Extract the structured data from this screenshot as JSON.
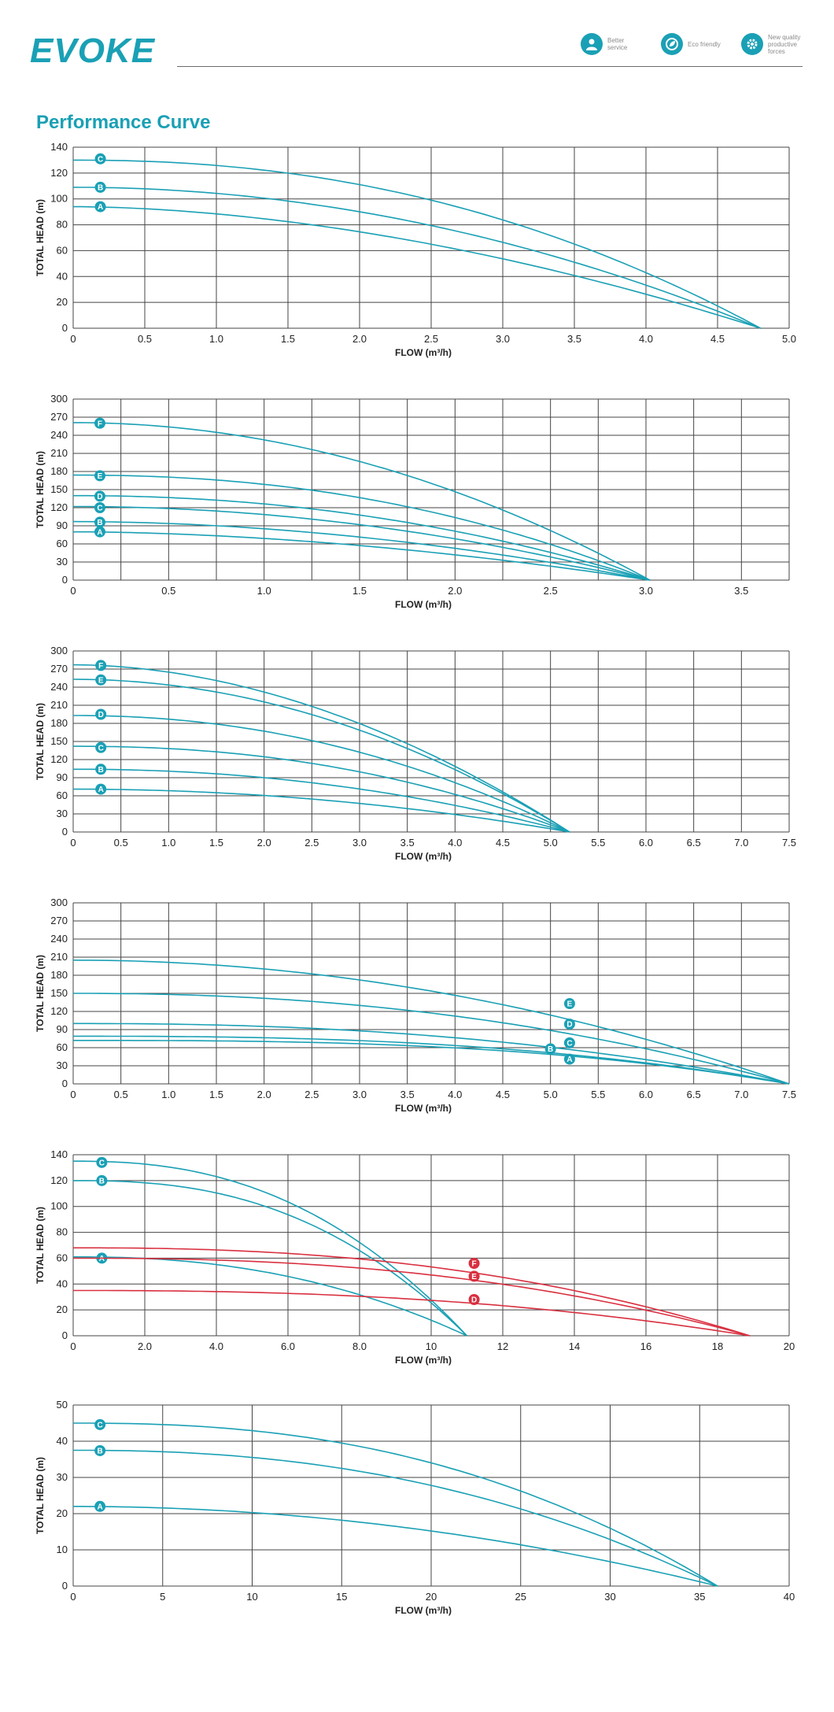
{
  "brand": {
    "logo_text": "EVOKE",
    "accent": "#1aa0b5",
    "secondary": "#d93040"
  },
  "badges": [
    {
      "icon": "service-person-icon",
      "text": "Better service"
    },
    {
      "icon": "eco-leaf-icon",
      "text": "Eco friendly"
    },
    {
      "icon": "gear-icon",
      "text": "New quality productive forces"
    }
  ],
  "page_title": "Performance Curve",
  "chart_data": [
    {
      "type": "line",
      "xlabel": "FLOW (m³/h)",
      "ylabel": "TOTAL  HEAD  (m)",
      "xlim": [
        0,
        5.0
      ],
      "ylim": [
        0,
        140
      ],
      "xticks": [
        0,
        0.5,
        1.0,
        1.5,
        2.0,
        2.5,
        3.0,
        3.5,
        4.0,
        4.5,
        5.0
      ],
      "xtick_labels": [
        "0",
        "0.5",
        "1.0",
        "1.5",
        "2.0",
        "2.5",
        "3.0",
        "3.5",
        "4.0",
        "4.5",
        "5.0"
      ],
      "yticks": [
        0,
        20,
        40,
        60,
        80,
        100,
        120,
        140
      ],
      "grid": true,
      "marker_x": 0.19,
      "series": [
        {
          "name": "C",
          "color": "#1aa0b5",
          "shutoff_head": 130,
          "max_flow": 4.8,
          "shape": 2.2,
          "label_head": 131
        },
        {
          "name": "B",
          "color": "#1aa0b5",
          "shutoff_head": 109,
          "max_flow": 4.8,
          "shape": 2.0,
          "label_head": 109
        },
        {
          "name": "A",
          "color": "#1aa0b5",
          "shutoff_head": 94,
          "max_flow": 4.8,
          "shape": 1.8,
          "label_head": 94
        }
      ]
    },
    {
      "type": "line",
      "xlabel": "FLOW (m³/h)",
      "ylabel": "TOTAL  HEAD  (m)",
      "xlim": [
        0,
        3.75
      ],
      "ylim": [
        0,
        300
      ],
      "xticks": [
        0,
        0.5,
        1.0,
        1.5,
        2.0,
        2.5,
        3.0,
        3.5
      ],
      "xtick_labels": [
        "0",
        "0.5",
        "1.0",
        "1.5",
        "2.0",
        "2.5",
        "3.0",
        "3.5"
      ],
      "yticks": [
        0,
        30,
        60,
        90,
        120,
        150,
        180,
        210,
        240,
        270,
        300
      ],
      "xgrid_step": 0.25,
      "grid": true,
      "marker_x": 0.14,
      "series": [
        {
          "name": "F",
          "color": "#1aa0b5",
          "shutoff_head": 261,
          "max_flow": 3.02,
          "shape": 2.0,
          "label_head": 260
        },
        {
          "name": "E",
          "color": "#1aa0b5",
          "shutoff_head": 174,
          "max_flow": 3.02,
          "shape": 2.2,
          "label_head": 173
        },
        {
          "name": "D",
          "color": "#1aa0b5",
          "shutoff_head": 140,
          "max_flow": 3.02,
          "shape": 2.1,
          "label_head": 139
        },
        {
          "name": "C",
          "color": "#1aa0b5",
          "shutoff_head": 122,
          "max_flow": 3.02,
          "shape": 2.0,
          "label_head": 120
        },
        {
          "name": "B",
          "color": "#1aa0b5",
          "shutoff_head": 97,
          "max_flow": 3.02,
          "shape": 1.9,
          "label_head": 96
        },
        {
          "name": "A",
          "color": "#1aa0b5",
          "shutoff_head": 80,
          "max_flow": 3.02,
          "shape": 1.8,
          "label_head": 80
        }
      ]
    },
    {
      "type": "line",
      "xlabel": "FLOW (m³/h)",
      "ylabel": "TOTAL  HEAD  (m)",
      "xlim": [
        0,
        7.5
      ],
      "ylim": [
        0,
        300
      ],
      "xticks": [
        0,
        0.5,
        1.0,
        1.5,
        2.0,
        2.5,
        3.0,
        3.5,
        4.0,
        4.5,
        5.0,
        5.5,
        6.0,
        6.5,
        7.0,
        7.5
      ],
      "xtick_labels": [
        "0",
        "0.5",
        "1.0",
        "1.5",
        "2.0",
        "2.5",
        "3.0",
        "3.5",
        "4.0",
        "4.5",
        "5.0",
        "5.5",
        "6.0",
        "6.5",
        "7.0",
        "7.5"
      ],
      "yticks": [
        0,
        30,
        60,
        90,
        120,
        150,
        180,
        210,
        240,
        270,
        300
      ],
      "grid": true,
      "marker_x": 0.29,
      "series": [
        {
          "name": "F",
          "color": "#1aa0b5",
          "shutoff_head": 277,
          "max_flow": 5.2,
          "shape": 1.9,
          "label_head": 276
        },
        {
          "name": "E",
          "color": "#1aa0b5",
          "shutoff_head": 253,
          "max_flow": 5.2,
          "shape": 2.0,
          "label_head": 252
        },
        {
          "name": "D",
          "color": "#1aa0b5",
          "shutoff_head": 193,
          "max_flow": 5.2,
          "shape": 2.1,
          "label_head": 195
        },
        {
          "name": "C",
          "color": "#1aa0b5",
          "shutoff_head": 142,
          "max_flow": 5.2,
          "shape": 2.2,
          "label_head": 140
        },
        {
          "name": "B",
          "color": "#1aa0b5",
          "shutoff_head": 104,
          "max_flow": 5.2,
          "shape": 2.1,
          "label_head": 104
        },
        {
          "name": "A",
          "color": "#1aa0b5",
          "shutoff_head": 71,
          "max_flow": 5.2,
          "shape": 2.0,
          "label_head": 71
        }
      ]
    },
    {
      "type": "line",
      "xlabel": "FLOW (m³/h)",
      "ylabel": "TOTAL  HEAD  (m)",
      "xlim": [
        0,
        7.5
      ],
      "ylim": [
        0,
        300
      ],
      "xticks": [
        0,
        0.5,
        1.0,
        1.5,
        2.0,
        2.5,
        3.0,
        3.5,
        4.0,
        4.5,
        5.0,
        5.5,
        6.0,
        6.5,
        7.0,
        7.5
      ],
      "xtick_labels": [
        "0",
        "0.5",
        "1.0",
        "1.5",
        "2.0",
        "2.5",
        "3.0",
        "3.5",
        "4.0",
        "4.5",
        "5.0",
        "5.5",
        "6.0",
        "6.5",
        "7.0",
        "7.5"
      ],
      "yticks": [
        0,
        30,
        60,
        90,
        120,
        150,
        180,
        210,
        240,
        270,
        300
      ],
      "grid": true,
      "series": [
        {
          "name": "E",
          "color": "#1aa0b5",
          "shutoff_head": 205,
          "max_flow": 7.5,
          "shape": 2.0,
          "label_x": 5.2,
          "label_head": 133
        },
        {
          "name": "D",
          "color": "#1aa0b5",
          "shutoff_head": 150,
          "max_flow": 7.5,
          "shape": 2.2,
          "label_x": 5.2,
          "label_head": 99
        },
        {
          "name": "C",
          "color": "#1aa0b5",
          "shutoff_head": 100,
          "max_flow": 7.5,
          "shape": 2.3,
          "label_x": 5.2,
          "label_head": 68
        },
        {
          "name": "B",
          "color": "#1aa0b5",
          "shutoff_head": 79,
          "max_flow": 7.5,
          "shape": 2.6,
          "label_x": 5.0,
          "label_head": 58
        },
        {
          "name": "A",
          "color": "#1aa0b5",
          "shutoff_head": 72,
          "max_flow": 7.5,
          "shape": 2.8,
          "label_x": 5.2,
          "label_head": 41
        }
      ]
    },
    {
      "type": "line",
      "xlabel": "FLOW (m³/h)",
      "ylabel": "TOTAL  HEAD  (m)",
      "xlim": [
        0,
        20
      ],
      "ylim": [
        0,
        140
      ],
      "xticks": [
        0,
        2,
        4,
        6,
        8,
        10,
        12,
        14,
        16,
        18,
        20
      ],
      "xtick_labels": [
        "0",
        "2.0",
        "4.0",
        "6.0",
        "8.0",
        "10",
        "12",
        "14",
        "16",
        "18",
        "20"
      ],
      "yticks": [
        0,
        20,
        40,
        60,
        80,
        100,
        120,
        140
      ],
      "grid": true,
      "series": [
        {
          "name": "C",
          "color": "#1aa0b5",
          "shutoff_head": 135,
          "max_flow": 11.0,
          "shape": 2.4,
          "label_x": 0.8,
          "label_head": 134
        },
        {
          "name": "B",
          "color": "#1aa0b5",
          "shutoff_head": 120,
          "max_flow": 11.0,
          "shape": 2.5,
          "label_x": 0.8,
          "label_head": 120
        },
        {
          "name": "A",
          "color": "#1aa0b5",
          "shutoff_head": 61,
          "max_flow": 11.0,
          "shape": 2.3,
          "label_x": 0.8,
          "label_head": 60
        },
        {
          "name": "F",
          "color": "#d93040",
          "shutoff_head": 68,
          "max_flow": 18.9,
          "shape": 2.4,
          "label_x": 11.2,
          "label_head": 56
        },
        {
          "name": "E",
          "color": "#d93040",
          "shutoff_head": 60,
          "max_flow": 18.9,
          "shape": 2.4,
          "label_x": 11.2,
          "label_head": 46
        },
        {
          "name": "D",
          "color": "#d93040",
          "shutoff_head": 35,
          "max_flow": 18.9,
          "shape": 2.4,
          "label_x": 11.2,
          "label_head": 28
        }
      ]
    },
    {
      "type": "line",
      "xlabel": "FLOW (m³/h)",
      "ylabel": "TOTAL  HEAD  (m)",
      "xlim": [
        0,
        40
      ],
      "ylim": [
        0,
        50
      ],
      "xticks": [
        0,
        5,
        10,
        15,
        20,
        25,
        30,
        35,
        40
      ],
      "xtick_labels": [
        "0",
        "5",
        "10",
        "15",
        "20",
        "25",
        "30",
        "35",
        "40"
      ],
      "yticks": [
        0,
        10,
        20,
        30,
        40,
        50
      ],
      "grid": true,
      "series": [
        {
          "name": "C",
          "color": "#1aa0b5",
          "shutoff_head": 45,
          "max_flow": 36.0,
          "shape": 2.4,
          "label_x": 1.5,
          "label_head": 44.6
        },
        {
          "name": "B",
          "color": "#1aa0b5",
          "shutoff_head": 37.5,
          "max_flow": 36.0,
          "shape": 2.3,
          "label_x": 1.5,
          "label_head": 37.4
        },
        {
          "name": "A",
          "color": "#1aa0b5",
          "shutoff_head": 22,
          "max_flow": 36.0,
          "shape": 2.0,
          "label_x": 1.5,
          "label_head": 22
        }
      ]
    }
  ]
}
